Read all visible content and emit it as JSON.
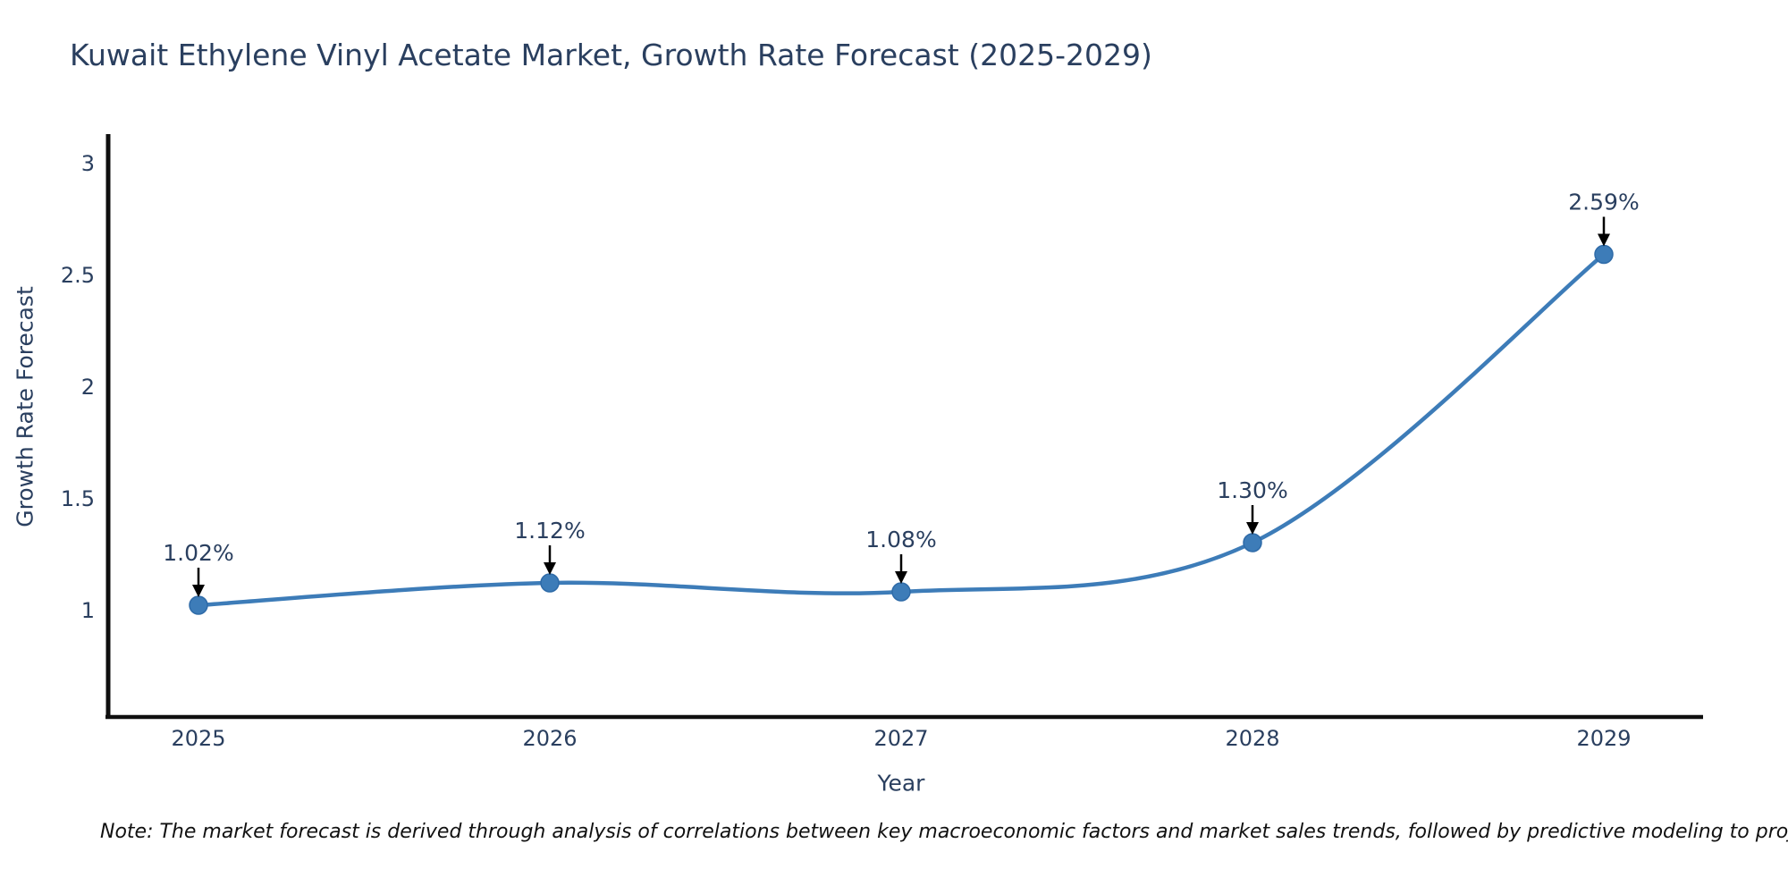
{
  "title": "Kuwait Ethylene Vinyl Acetate Market, Growth Rate Forecast (2025-2029)",
  "note": "Note: The market forecast is derived through analysis of correlations between key macroeconomic factors and market sales trends, followed by predictive modeling to project future sales",
  "chart_data": {
    "type": "line",
    "title": "Kuwait Ethylene Vinyl Acetate Market, Growth Rate Forecast (2025-2029)",
    "x": [
      2025,
      2026,
      2027,
      2028,
      2029
    ],
    "y": [
      1.02,
      1.12,
      1.08,
      1.3,
      2.59
    ],
    "point_labels": [
      "1.02%",
      "1.12%",
      "1.08%",
      "1.30%",
      "2.59%"
    ],
    "xtick_labels": [
      "2025",
      "2026",
      "2027",
      "2028",
      "2029"
    ],
    "ytick_values": [
      1,
      1.5,
      2,
      2.5,
      3
    ],
    "ytick_labels": [
      "1",
      "1.5",
      "2",
      "2.5",
      "3"
    ],
    "xlabel": "Year",
    "ylabel": "Growth Rate Forecast",
    "ylim": [
      0.52,
      3.12
    ],
    "grid": false,
    "legend": "none",
    "line_shape": "spline",
    "colors": {
      "line": "#3d7cb8",
      "marker": "#3d7cb8",
      "marker_edge": "#2f6ba8",
      "axis": "#0f0f0f",
      "text": "#2a3f5f",
      "arrow": "#000000",
      "background": "#ffffff"
    }
  }
}
